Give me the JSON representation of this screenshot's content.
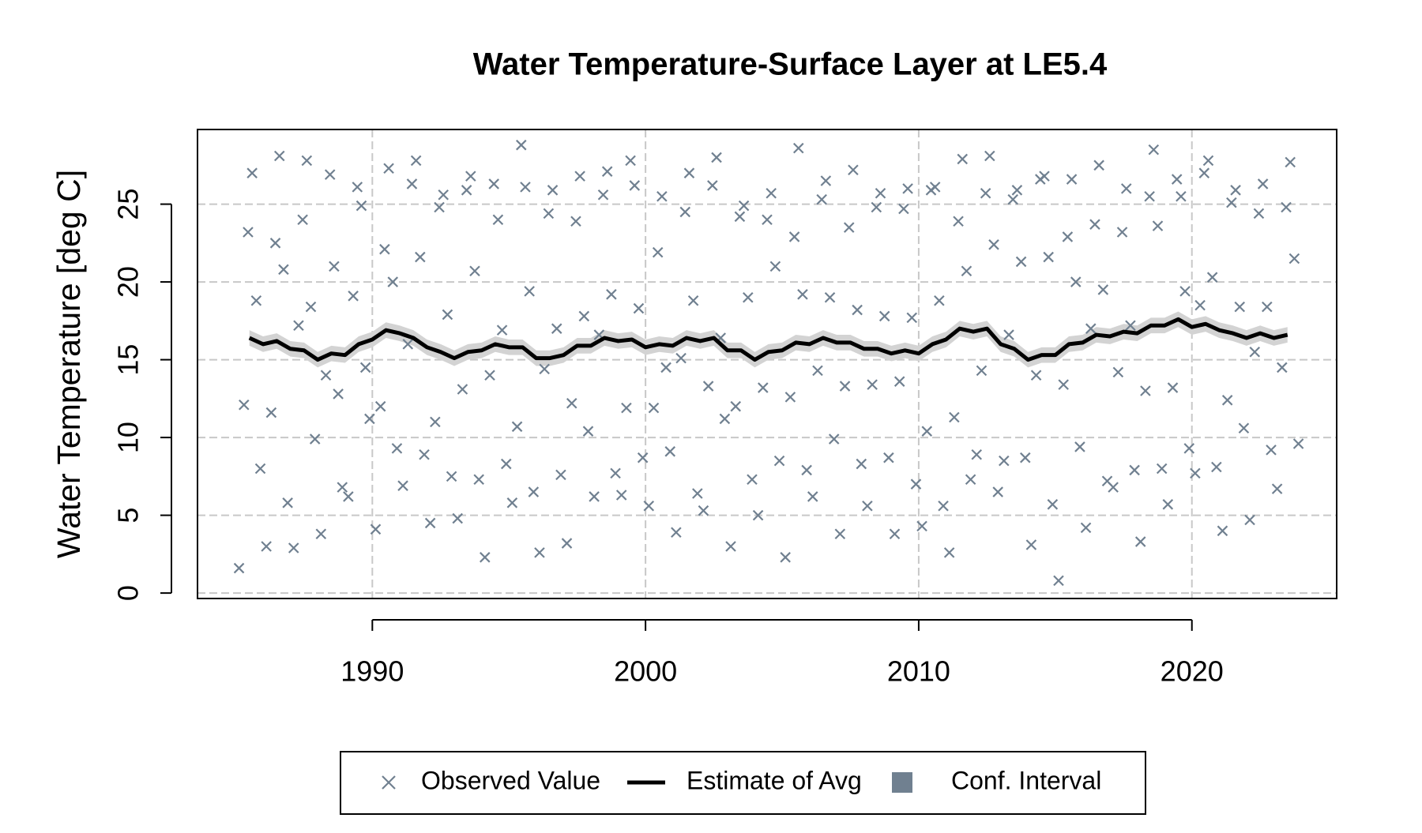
{
  "chart_data": {
    "type": "scatter",
    "title": "Water Temperature-Surface Layer at LE5.4",
    "ylabel": "Water Temperature [deg C]",
    "xlim": [
      1983.6,
      2025.3
    ],
    "ylim": [
      -0.35,
      29.8
    ],
    "xticks": [
      1990,
      2000,
      2010,
      2020
    ],
    "yticks": [
      0,
      5,
      10,
      15,
      20,
      25
    ],
    "grid": true,
    "series": [
      {
        "name": "Observed Value",
        "type": "scatter",
        "color": "#708090",
        "x": [
          1985.12,
          1985.3,
          1985.45,
          1985.6,
          1985.75,
          1985.9,
          1986.12,
          1986.3,
          1986.45,
          1986.6,
          1986.75,
          1986.9,
          1987.12,
          1987.3,
          1987.45,
          1987.6,
          1987.75,
          1987.9,
          1988.12,
          1988.3,
          1988.45,
          1988.6,
          1988.75,
          1988.9,
          1989.12,
          1989.3,
          1989.45,
          1989.6,
          1989.75,
          1989.9,
          1990.12,
          1990.3,
          1990.45,
          1990.6,
          1990.75,
          1990.9,
          1991.12,
          1991.3,
          1991.45,
          1991.6,
          1991.75,
          1991.9,
          1992.12,
          1992.3,
          1992.45,
          1992.6,
          1992.75,
          1992.9,
          1993.12,
          1993.3,
          1993.45,
          1993.6,
          1993.75,
          1993.9,
          1994.12,
          1994.3,
          1994.45,
          1994.6,
          1994.75,
          1994.9,
          1995.12,
          1995.3,
          1995.45,
          1995.6,
          1995.75,
          1995.9,
          1996.12,
          1996.3,
          1996.45,
          1996.6,
          1996.75,
          1996.9,
          1997.12,
          1997.3,
          1997.45,
          1997.6,
          1997.75,
          1997.9,
          1998.12,
          1998.3,
          1998.45,
          1998.6,
          1998.75,
          1998.9,
          1999.12,
          1999.3,
          1999.45,
          1999.6,
          1999.75,
          1999.9,
          2000.12,
          2000.3,
          2000.45,
          2000.6,
          2000.75,
          2000.9,
          2001.12,
          2001.3,
          2001.45,
          2001.6,
          2001.75,
          2001.9,
          2002.12,
          2002.3,
          2002.45,
          2002.6,
          2002.75,
          2002.9,
          2003.12,
          2003.3,
          2003.45,
          2003.6,
          2003.75,
          2003.9,
          2004.12,
          2004.3,
          2004.45,
          2004.6,
          2004.75,
          2004.9,
          2005.12,
          2005.3,
          2005.45,
          2005.6,
          2005.75,
          2005.9,
          2006.12,
          2006.3,
          2006.45,
          2006.6,
          2006.75,
          2006.9,
          2007.12,
          2007.3,
          2007.45,
          2007.6,
          2007.75,
          2007.9,
          2008.12,
          2008.3,
          2008.45,
          2008.6,
          2008.75,
          2008.9,
          2009.12,
          2009.3,
          2009.45,
          2009.6,
          2009.75,
          2009.9,
          2010.12,
          2010.3,
          2010.45,
          2010.6,
          2010.75,
          2010.9,
          2011.12,
          2011.3,
          2011.45,
          2011.6,
          2011.75,
          2011.9,
          2012.12,
          2012.3,
          2012.45,
          2012.6,
          2012.75,
          2012.9,
          2013.12,
          2013.3,
          2013.45,
          2013.6,
          2013.75,
          2013.9,
          2014.12,
          2014.3,
          2014.45,
          2014.6,
          2014.75,
          2014.9,
          2015.12,
          2015.3,
          2015.45,
          2015.6,
          2015.75,
          2015.9,
          2016.12,
          2016.3,
          2016.45,
          2016.6,
          2016.75,
          2016.9,
          2017.12,
          2017.3,
          2017.45,
          2017.6,
          2017.75,
          2017.9,
          2018.12,
          2018.3,
          2018.45,
          2018.6,
          2018.75,
          2018.9,
          2019.12,
          2019.3,
          2019.45,
          2019.6,
          2019.75,
          2019.9,
          2020.12,
          2020.3,
          2020.45,
          2020.6,
          2020.75,
          2020.9,
          2021.12,
          2021.3,
          2021.45,
          2021.6,
          2021.75,
          2021.9,
          2022.12,
          2022.3,
          2022.45,
          2022.6,
          2022.75,
          2022.9,
          2023.12,
          2023.3,
          2023.45,
          2023.6,
          2023.75,
          2023.9
        ],
        "values": [
          1.6,
          12.1,
          23.2,
          27.0,
          18.8,
          8.0,
          3.0,
          11.6,
          22.5,
          28.1,
          20.8,
          5.8,
          2.9,
          17.2,
          24.0,
          27.8,
          18.4,
          9.9,
          3.8,
          14.0,
          26.9,
          21.0,
          12.8,
          6.8,
          6.2,
          19.1,
          26.1,
          24.9,
          14.5,
          11.2,
          4.1,
          12.0,
          22.1,
          27.3,
          20.0,
          9.3,
          6.9,
          16.0,
          26.3,
          27.8,
          21.6,
          8.9,
          4.5,
          11.0,
          24.8,
          25.6,
          17.9,
          7.5,
          4.8,
          13.1,
          25.9,
          26.8,
          20.7,
          7.3,
          2.3,
          14.0,
          26.3,
          24.0,
          16.9,
          8.3,
          5.8,
          10.7,
          28.8,
          26.1,
          19.4,
          6.5,
          2.6,
          14.4,
          24.4,
          25.9,
          17.0,
          7.6,
          3.2,
          12.2,
          23.9,
          26.8,
          17.8,
          10.4,
          6.2,
          16.6,
          25.6,
          27.1,
          19.2,
          7.7,
          6.3,
          11.9,
          27.8,
          26.2,
          18.3,
          8.7,
          5.6,
          11.9,
          21.9,
          25.5,
          14.5,
          9.1,
          3.9,
          15.1,
          24.5,
          27.0,
          18.8,
          6.4,
          5.3,
          13.3,
          26.2,
          28.0,
          16.4,
          11.2,
          3.0,
          12.0,
          24.2,
          24.9,
          19.0,
          7.3,
          5.0,
          13.2,
          24.0,
          25.7,
          21.0,
          8.5,
          2.3,
          12.6,
          22.9,
          28.6,
          19.2,
          7.9,
          6.2,
          14.3,
          25.3,
          26.5,
          19.0,
          9.9,
          3.8,
          13.3,
          23.5,
          27.2,
          18.2,
          8.3,
          5.6,
          13.4,
          24.8,
          25.7,
          17.8,
          8.7,
          3.8,
          13.6,
          24.7,
          26.0,
          17.7,
          7.0,
          4.3,
          10.4,
          25.9,
          26.1,
          18.8,
          5.6,
          2.6,
          11.3,
          23.9,
          27.9,
          20.7,
          7.3,
          8.9,
          14.3,
          25.7,
          28.1,
          22.4,
          6.5,
          8.5,
          16.6,
          25.3,
          25.9,
          21.3,
          8.7,
          3.1,
          14.0,
          26.6,
          26.8,
          21.6,
          5.7,
          0.8,
          13.4,
          22.9,
          26.6,
          20.0,
          9.4,
          4.2,
          17.0,
          23.7,
          27.5,
          19.5,
          7.2,
          6.8,
          14.2,
          23.2,
          26.0,
          17.2,
          7.9,
          3.3,
          13.0,
          25.5,
          28.5,
          23.6,
          8.0,
          5.7,
          13.2,
          26.6,
          25.5,
          19.4,
          9.3,
          7.7,
          18.5,
          27.0,
          27.8,
          20.3,
          8.1,
          4.0,
          12.4,
          25.1,
          25.9,
          18.4,
          10.6,
          4.7,
          15.5,
          24.4,
          26.3,
          18.4,
          9.2,
          6.7,
          14.5,
          24.8,
          27.7,
          21.5,
          9.6
        ]
      },
      {
        "name": "Estimate of Avg",
        "type": "line",
        "color": "#000000",
        "x": [
          1985.5,
          1986,
          1986.5,
          1987,
          1987.5,
          1988,
          1988.5,
          1989,
          1989.5,
          1990,
          1990.5,
          1991,
          1991.5,
          1992,
          1992.5,
          1993,
          1993.5,
          1994,
          1994.5,
          1995,
          1995.5,
          1996,
          1996.5,
          1997,
          1997.5,
          1998,
          1998.5,
          1999,
          1999.5,
          2000,
          2000.5,
          2001,
          2001.5,
          2002,
          2002.5,
          2003,
          2003.5,
          2004,
          2004.5,
          2005,
          2005.5,
          2006,
          2006.5,
          2007,
          2007.5,
          2008,
          2008.5,
          2009,
          2009.5,
          2010,
          2010.5,
          2011,
          2011.5,
          2012,
          2012.5,
          2013,
          2013.5,
          2014,
          2014.5,
          2015,
          2015.5,
          2016,
          2016.5,
          2017,
          2017.5,
          2018,
          2018.5,
          2019,
          2019.5,
          2020,
          2020.5,
          2021,
          2021.5,
          2022,
          2022.5,
          2023,
          2023.5
        ],
        "values": [
          16.4,
          16.0,
          16.2,
          15.7,
          15.6,
          15.0,
          15.4,
          15.3,
          16.0,
          16.3,
          16.9,
          16.7,
          16.4,
          15.8,
          15.5,
          15.1,
          15.5,
          15.6,
          16.0,
          15.8,
          15.8,
          15.1,
          15.1,
          15.3,
          15.9,
          15.9,
          16.4,
          16.2,
          16.3,
          15.8,
          16.0,
          15.9,
          16.4,
          16.2,
          16.4,
          15.6,
          15.6,
          15.0,
          15.5,
          15.6,
          16.1,
          16.0,
          16.4,
          16.1,
          16.1,
          15.7,
          15.7,
          15.4,
          15.6,
          15.4,
          16.0,
          16.3,
          17.0,
          16.8,
          17.0,
          16.0,
          15.7,
          15.0,
          15.3,
          15.3,
          16.0,
          16.1,
          16.6,
          16.5,
          16.8,
          16.7,
          17.2,
          17.2,
          17.6,
          17.1,
          17.3,
          16.9,
          16.7,
          16.4,
          16.7,
          16.4,
          16.6
        ]
      },
      {
        "name": "Conf. Interval",
        "type": "band",
        "color": "#d3d3d3",
        "legend_color": "#708090",
        "x": [
          1985.5,
          1986,
          1986.5,
          1987,
          1987.5,
          1988,
          1988.5,
          1989,
          1989.5,
          1990,
          1990.5,
          1991,
          1991.5,
          1992,
          1992.5,
          1993,
          1993.5,
          1994,
          1994.5,
          1995,
          1995.5,
          1996,
          1996.5,
          1997,
          1997.5,
          1998,
          1998.5,
          1999,
          1999.5,
          2000,
          2000.5,
          2001,
          2001.5,
          2002,
          2002.5,
          2003,
          2003.5,
          2004,
          2004.5,
          2005,
          2005.5,
          2006,
          2006.5,
          2007,
          2007.5,
          2008,
          2008.5,
          2009,
          2009.5,
          2010,
          2010.5,
          2011,
          2011.5,
          2012,
          2012.5,
          2013,
          2013.5,
          2014,
          2014.5,
          2015,
          2015.5,
          2016,
          2016.5,
          2017,
          2017.5,
          2018,
          2018.5,
          2019,
          2019.5,
          2020,
          2020.5,
          2021,
          2021.5,
          2022,
          2022.5,
          2023,
          2023.5
        ],
        "lower": [
          15.9,
          15.5,
          15.7,
          15.2,
          15.1,
          14.5,
          14.9,
          14.8,
          15.5,
          15.8,
          16.4,
          16.2,
          15.9,
          15.3,
          15.0,
          14.6,
          15.0,
          15.1,
          15.5,
          15.3,
          15.3,
          14.6,
          14.6,
          14.8,
          15.4,
          15.4,
          15.9,
          15.7,
          15.8,
          15.3,
          15.5,
          15.4,
          15.9,
          15.7,
          15.9,
          15.1,
          15.1,
          14.5,
          15.0,
          15.1,
          15.6,
          15.5,
          15.9,
          15.6,
          15.6,
          15.2,
          15.2,
          14.9,
          15.1,
          14.9,
          15.5,
          15.8,
          16.5,
          16.3,
          16.5,
          15.5,
          15.2,
          14.5,
          14.8,
          14.8,
          15.5,
          15.6,
          16.1,
          16.0,
          16.3,
          16.2,
          16.7,
          16.7,
          17.1,
          16.6,
          16.8,
          16.4,
          16.2,
          15.9,
          16.2,
          15.9,
          16.1
        ],
        "upper": [
          16.9,
          16.5,
          16.7,
          16.2,
          16.1,
          15.5,
          15.9,
          15.8,
          16.5,
          16.8,
          17.4,
          17.2,
          16.9,
          16.3,
          16.0,
          15.6,
          16.0,
          16.1,
          16.5,
          16.3,
          16.3,
          15.6,
          15.6,
          15.8,
          16.4,
          16.4,
          16.9,
          16.7,
          16.8,
          16.3,
          16.5,
          16.4,
          16.9,
          16.7,
          16.9,
          16.1,
          16.1,
          15.5,
          16.0,
          16.1,
          16.6,
          16.5,
          16.9,
          16.6,
          16.6,
          16.2,
          16.2,
          15.9,
          16.1,
          15.9,
          16.5,
          16.8,
          17.5,
          17.3,
          17.5,
          16.5,
          16.2,
          15.5,
          15.8,
          15.8,
          16.5,
          16.6,
          17.1,
          17.0,
          17.3,
          17.2,
          17.7,
          17.7,
          18.1,
          17.6,
          17.8,
          17.4,
          17.2,
          16.9,
          17.2,
          16.9,
          17.1
        ]
      }
    ]
  }
}
